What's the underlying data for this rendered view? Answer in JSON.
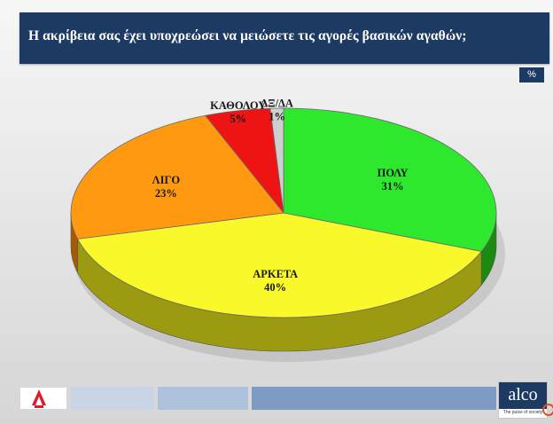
{
  "header": {
    "title": "Η ακρίβεια σας έχει υποχρεώσει να μειώσετε τις αγορές βασικών αγαθών;"
  },
  "unit": "%",
  "footer": {
    "brand": "alco",
    "tagline": "The pulse of society"
  },
  "colors": {
    "header_bg": "#1d3a63",
    "footer_segments": [
      "#ffffff",
      "#c9d5e6",
      "#aec2dc",
      "#7d9bc3"
    ]
  },
  "chart_data": {
    "type": "pie",
    "style": "3d",
    "title": "",
    "slices": [
      {
        "label": "ΠΟΛΥ",
        "value": 31,
        "value_label": "31%",
        "color": "#2ee82e",
        "side": "#1a8a12"
      },
      {
        "label": "ΑΡΚΕΤΑ",
        "value": 40,
        "value_label": "40%",
        "color": "#f8f82a",
        "side": "#9c9a10"
      },
      {
        "label": "ΛΙΓΟ",
        "value": 23,
        "value_label": "23%",
        "color": "#ff9a10",
        "side": "#a85a00"
      },
      {
        "label": "ΚΑΘΟΛΟΥ",
        "value": 5,
        "value_label": "5%",
        "color": "#ee1414",
        "side": "#8a0a0a"
      },
      {
        "label": "ΔΞ/ΔΑ",
        "value": 1,
        "value_label": "1%",
        "color": "#cfcfcf",
        "side": "#8a8a8a"
      }
    ]
  }
}
